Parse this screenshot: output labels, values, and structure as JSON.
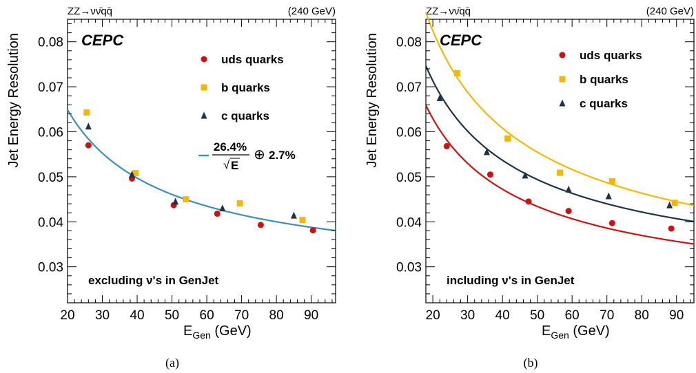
{
  "chart_data": [
    {
      "panel_label": "(a)",
      "type": "scatter",
      "title": "ZZ→νν̄qq̄",
      "subtitle": "(240 GeV)",
      "xlabel_main": "E",
      "xlabel_sub": "Gen",
      "xlabel_unit": " (GeV)",
      "ylabel": "Jet Energy Resolution",
      "xlim": [
        20,
        97
      ],
      "ylim": [
        0.022,
        0.085
      ],
      "xticks": [
        20,
        30,
        40,
        50,
        60,
        70,
        80,
        90
      ],
      "yticks": [
        0.03,
        0.04,
        0.05,
        0.06,
        0.07,
        0.08
      ],
      "ytick_labels": [
        "0.03",
        "0.04",
        "0.05",
        "0.06",
        "0.07",
        "0.08"
      ],
      "grid": false,
      "experiment_label": "CEPC",
      "annotation": "excluding ν's in GenJet",
      "legend_position": "top-right",
      "series": [
        {
          "name": "uds quarks",
          "marker": "circle",
          "color": "#cc1111",
          "points": [
            [
              26,
              0.057
            ],
            [
              38.5,
              0.0496
            ],
            [
              50.5,
              0.0437
            ],
            [
              63,
              0.0418
            ],
            [
              75.5,
              0.0393
            ],
            [
              90.5,
              0.0381
            ]
          ]
        },
        {
          "name": "b quarks",
          "marker": "square",
          "color": "#f5b800",
          "points": [
            [
              25.5,
              0.0643
            ],
            [
              39.5,
              0.0508
            ],
            [
              54,
              0.045
            ],
            [
              69.5,
              0.0441
            ],
            [
              87.5,
              0.0404
            ]
          ]
        },
        {
          "name": "c quarks",
          "marker": "triangle",
          "color": "#1d3447",
          "points": [
            [
              26,
              0.0612
            ],
            [
              38.5,
              0.0505
            ],
            [
              51,
              0.0445
            ],
            [
              64.5,
              0.043
            ],
            [
              85,
              0.0414
            ]
          ]
        }
      ],
      "fits": [
        {
          "stochastic": 0.264,
          "constant": 0.027,
          "color": "#3a8fb5"
        }
      ],
      "fit_legend": {
        "stochastic_label": "26.4%",
        "sqrt_symbol": "√",
        "energy_symbol": "E",
        "oplus": "⊕",
        "constant_label": "2.7%",
        "color": "#3a8fb5"
      }
    },
    {
      "panel_label": "(b)",
      "type": "scatter",
      "title": "ZZ→νν̄qq̄",
      "subtitle": "(240 GeV)",
      "xlabel_main": "E",
      "xlabel_sub": "Gen",
      "xlabel_unit": " (GeV)",
      "ylabel": "Jet Energy Resolution",
      "xlim": [
        18,
        95
      ],
      "ylim": [
        0.022,
        0.085
      ],
      "xticks": [
        20,
        30,
        40,
        50,
        60,
        70,
        80,
        90
      ],
      "yticks": [
        0.03,
        0.04,
        0.05,
        0.06,
        0.07,
        0.08
      ],
      "ytick_labels": [
        "0.03",
        "0.04",
        "0.05",
        "0.06",
        "0.07",
        "0.08"
      ],
      "grid": false,
      "experiment_label": "CEPC",
      "annotation": "including ν's in GenJet",
      "legend_position": "top-right",
      "series": [
        {
          "name": "uds quarks",
          "marker": "circle",
          "color": "#cc1111",
          "points": [
            [
              24,
              0.0568
            ],
            [
              36.5,
              0.0505
            ],
            [
              47.5,
              0.0445
            ],
            [
              59,
              0.0424
            ],
            [
              71.5,
              0.0397
            ],
            [
              88.5,
              0.0385
            ]
          ]
        },
        {
          "name": "b quarks",
          "marker": "square",
          "color": "#f5b800",
          "points": [
            [
              27,
              0.073
            ],
            [
              41.5,
              0.0585
            ],
            [
              56.5,
              0.0509
            ],
            [
              71.5,
              0.049
            ],
            [
              89.5,
              0.0442
            ]
          ]
        },
        {
          "name": "c quarks",
          "marker": "triangle",
          "color": "#1d3447",
          "points": [
            [
              22,
              0.0675
            ],
            [
              35.5,
              0.0555
            ],
            [
              46.5,
              0.0503
            ],
            [
              59,
              0.0472
            ],
            [
              70.5,
              0.0457
            ],
            [
              88,
              0.0437
            ]
          ]
        }
      ],
      "fits": [
        {
          "stochastic": 0.263,
          "constant": 0.0224,
          "color": "#cc1111"
        },
        {
          "stochastic": 0.297,
          "constant": 0.026,
          "color": "#1d3447"
        },
        {
          "stochastic": 0.352,
          "constant": 0.0245,
          "color": "#f5b800"
        }
      ]
    }
  ]
}
